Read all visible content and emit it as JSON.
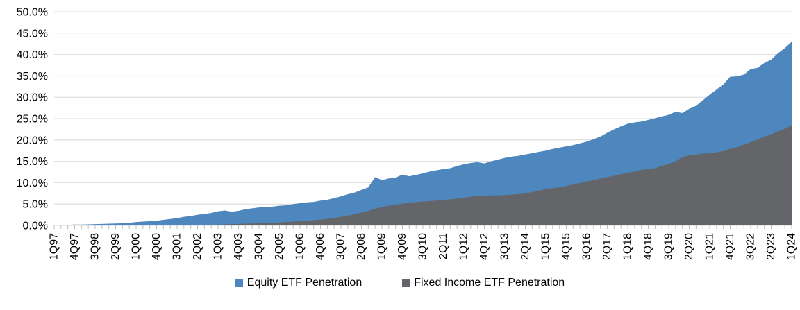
{
  "chart_data": {
    "type": "area",
    "title": "",
    "xlabel": "",
    "ylabel": "",
    "ylim": [
      0,
      50
    ],
    "ytick_values": [
      0,
      5,
      10,
      15,
      20,
      25,
      30,
      35,
      40,
      45,
      50
    ],
    "ytick_labels": [
      "0.0%",
      "5.0%",
      "10.0%",
      "15.0%",
      "20.0%",
      "25.0%",
      "30.0%",
      "35.0%",
      "40.0%",
      "45.0%",
      "50.0%"
    ],
    "x_label_every": 3,
    "grid": true,
    "legend_position": "bottom",
    "colors": {
      "equity": "#4E87BD",
      "fixed_income": "#636569",
      "gridline": "#D9D9D9",
      "axis_line": "#D9D9D9",
      "tick": "#BFBFBF",
      "text": "#000000"
    },
    "x": [
      "1Q97",
      "2Q97",
      "3Q97",
      "4Q97",
      "1Q98",
      "2Q98",
      "3Q98",
      "4Q98",
      "1Q99",
      "2Q99",
      "3Q99",
      "4Q99",
      "1Q00",
      "2Q00",
      "3Q00",
      "4Q00",
      "1Q01",
      "2Q01",
      "3Q01",
      "4Q01",
      "1Q02",
      "2Q02",
      "3Q02",
      "4Q02",
      "1Q03",
      "2Q03",
      "3Q03",
      "4Q03",
      "1Q04",
      "2Q04",
      "3Q04",
      "4Q04",
      "1Q05",
      "2Q05",
      "3Q05",
      "4Q05",
      "1Q06",
      "2Q06",
      "3Q06",
      "4Q06",
      "1Q07",
      "2Q07",
      "3Q07",
      "4Q07",
      "1Q08",
      "2Q08",
      "3Q08",
      "4Q08",
      "1Q09",
      "2Q09",
      "3Q09",
      "4Q09",
      "1Q10",
      "2Q10",
      "3Q10",
      "4Q10",
      "1Q11",
      "2Q11",
      "3Q11",
      "4Q11",
      "1Q12",
      "2Q12",
      "3Q12",
      "4Q12",
      "1Q13",
      "2Q13",
      "3Q13",
      "4Q13",
      "1Q14",
      "2Q14",
      "3Q14",
      "4Q14",
      "1Q15",
      "2Q15",
      "3Q15",
      "4Q15",
      "1Q16",
      "2Q16",
      "3Q16",
      "4Q16",
      "1Q17",
      "2Q17",
      "3Q17",
      "4Q17",
      "1Q18",
      "2Q18",
      "3Q18",
      "4Q18",
      "1Q19",
      "2Q19",
      "3Q19",
      "4Q19",
      "1Q20",
      "2Q20",
      "3Q20",
      "4Q20",
      "1Q21",
      "2Q21",
      "3Q21",
      "4Q21",
      "1Q22",
      "2Q22",
      "3Q22",
      "4Q22",
      "1Q23",
      "2Q23",
      "3Q23",
      "4Q23",
      "1Q24"
    ],
    "series": [
      {
        "name": "Equity ETF Penetration",
        "color": "#4E87BD",
        "values": [
          0.1,
          0.1,
          0.15,
          0.2,
          0.2,
          0.25,
          0.3,
          0.35,
          0.4,
          0.45,
          0.5,
          0.6,
          0.8,
          0.9,
          1.0,
          1.1,
          1.3,
          1.5,
          1.7,
          2.0,
          2.2,
          2.5,
          2.7,
          2.9,
          3.3,
          3.5,
          3.2,
          3.4,
          3.8,
          4.0,
          4.2,
          4.3,
          4.4,
          4.6,
          4.7,
          5.0,
          5.2,
          5.4,
          5.5,
          5.8,
          6.0,
          6.4,
          6.8,
          7.3,
          7.7,
          8.3,
          8.9,
          11.3,
          10.6,
          11.0,
          11.2,
          11.9,
          11.5,
          11.8,
          12.2,
          12.6,
          12.9,
          13.2,
          13.4,
          13.9,
          14.3,
          14.6,
          14.8,
          14.5,
          15.0,
          15.4,
          15.8,
          16.1,
          16.3,
          16.6,
          16.9,
          17.2,
          17.5,
          17.9,
          18.2,
          18.5,
          18.8,
          19.2,
          19.6,
          20.2,
          20.8,
          21.7,
          22.5,
          23.2,
          23.8,
          24.1,
          24.3,
          24.7,
          25.1,
          25.5,
          25.9,
          26.6,
          26.3,
          27.3,
          28.0,
          29.3,
          30.6,
          31.8,
          33.0,
          34.8,
          34.9,
          35.3,
          36.6,
          36.9,
          38.0,
          38.8,
          40.3,
          41.5,
          43.0
        ]
      },
      {
        "name": "Fixed Income ETF Penetration",
        "color": "#636569",
        "values": [
          0,
          0,
          0,
          0,
          0,
          0,
          0,
          0,
          0,
          0,
          0,
          0,
          0,
          0,
          0,
          0,
          0,
          0.05,
          0.05,
          0.1,
          0.1,
          0.1,
          0.15,
          0.15,
          0.2,
          0.25,
          0.3,
          0.35,
          0.4,
          0.45,
          0.5,
          0.55,
          0.6,
          0.7,
          0.8,
          0.9,
          1.0,
          1.1,
          1.2,
          1.35,
          1.5,
          1.75,
          2.0,
          2.3,
          2.6,
          3.0,
          3.4,
          3.9,
          4.3,
          4.6,
          4.8,
          5.1,
          5.3,
          5.45,
          5.6,
          5.7,
          5.8,
          5.95,
          6.1,
          6.3,
          6.5,
          6.7,
          6.9,
          7.0,
          7.0,
          7.05,
          7.1,
          7.2,
          7.3,
          7.5,
          7.8,
          8.1,
          8.5,
          8.7,
          8.9,
          9.2,
          9.6,
          9.9,
          10.3,
          10.6,
          11.0,
          11.3,
          11.6,
          12.0,
          12.3,
          12.6,
          13.0,
          13.2,
          13.4,
          13.9,
          14.4,
          15.0,
          16.0,
          16.4,
          16.6,
          16.8,
          16.9,
          17.1,
          17.4,
          17.9,
          18.3,
          18.9,
          19.5,
          20.1,
          20.8,
          21.3,
          22.0,
          22.6,
          23.5
        ]
      }
    ]
  },
  "legend": {
    "equity_label": "Equity ETF Penetration",
    "fixed_income_label": "Fixed Income ETF Penetration"
  }
}
